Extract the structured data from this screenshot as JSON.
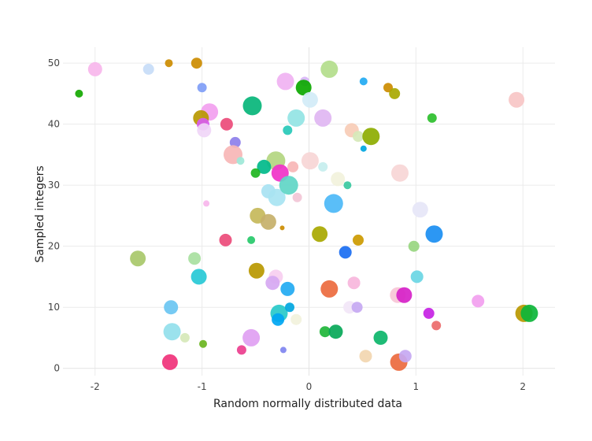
{
  "chart_data": {
    "type": "scatter",
    "title": "",
    "xlabel": "Random normally distributed data",
    "ylabel": "Sampled integers",
    "xlim": [
      -2.3,
      2.3
    ],
    "ylim": [
      -1.2,
      52.6
    ],
    "x_ticks": [
      -2,
      -1,
      0,
      1,
      2
    ],
    "x_tick_labels": [
      "-2",
      "-1",
      "0",
      "1",
      "2"
    ],
    "y_ticks": [
      0,
      10,
      20,
      30,
      40,
      50
    ],
    "y_tick_labels": [
      "0",
      "10",
      "20",
      "30",
      "40",
      "50"
    ],
    "grid": true,
    "legend": "none",
    "marker": "bubble; size and color vary per point",
    "points": [
      {
        "x": -2.0,
        "y": 49,
        "size": 9,
        "color": "#f7b6ec"
      },
      {
        "x": -1.5,
        "y": 49,
        "size": 7,
        "color": "#c7dcf7"
      },
      {
        "x": -1.31,
        "y": 50,
        "size": 5,
        "color": "#cc8c00"
      },
      {
        "x": -1.05,
        "y": 50,
        "size": 7,
        "color": "#cc8c00"
      },
      {
        "x": -1.0,
        "y": 46,
        "size": 6,
        "color": "#7f9df6"
      },
      {
        "x": -2.15,
        "y": 45,
        "size": 5,
        "color": "#13a800"
      },
      {
        "x": -0.93,
        "y": 42,
        "size": 11,
        "color": "#f2a0ef"
      },
      {
        "x": -1.01,
        "y": 41,
        "size": 10,
        "color": "#b89800"
      },
      {
        "x": -0.99,
        "y": 40,
        "size": 8,
        "color": "#d85cf0"
      },
      {
        "x": -0.98,
        "y": 39,
        "size": 9,
        "color": "#f0d6f7"
      },
      {
        "x": -0.77,
        "y": 40,
        "size": 8,
        "color": "#ec4b7a"
      },
      {
        "x": -0.69,
        "y": 37,
        "size": 7,
        "color": "#8d7fea"
      },
      {
        "x": -0.71,
        "y": 35,
        "size": 12,
        "color": "#f7b6b6"
      },
      {
        "x": -0.64,
        "y": 34,
        "size": 5,
        "color": "#9ee8d8"
      },
      {
        "x": -0.53,
        "y": 43,
        "size": 12,
        "color": "#07b57a"
      },
      {
        "x": -0.22,
        "y": 47,
        "size": 11,
        "color": "#f0b2f2"
      },
      {
        "x": -0.04,
        "y": 47,
        "size": 6,
        "color": "#d8b6f7"
      },
      {
        "x": -0.05,
        "y": 46,
        "size": 10,
        "color": "#0ca800"
      },
      {
        "x": 0.01,
        "y": 44,
        "size": 10,
        "color": "#d2ecf7"
      },
      {
        "x": 0.19,
        "y": 49,
        "size": 11,
        "color": "#b3dd8b"
      },
      {
        "x": 0.51,
        "y": 47,
        "size": 5,
        "color": "#22aaf2"
      },
      {
        "x": 0.74,
        "y": 46,
        "size": 6,
        "color": "#cc8c00"
      },
      {
        "x": 0.8,
        "y": 45,
        "size": 7,
        "color": "#a8a800"
      },
      {
        "x": 1.94,
        "y": 44,
        "size": 10,
        "color": "#f7c6c6"
      },
      {
        "x": -0.12,
        "y": 41,
        "size": 11,
        "color": "#93e4e4"
      },
      {
        "x": -0.2,
        "y": 39,
        "size": 6,
        "color": "#27c9b8"
      },
      {
        "x": 0.13,
        "y": 41,
        "size": 11,
        "color": "#e0b6f2"
      },
      {
        "x": 0.4,
        "y": 39,
        "size": 9,
        "color": "#f7ccb6"
      },
      {
        "x": 0.46,
        "y": 38,
        "size": 7,
        "color": "#d6e8b8"
      },
      {
        "x": 0.58,
        "y": 38,
        "size": 11,
        "color": "#8dac00"
      },
      {
        "x": 1.15,
        "y": 41,
        "size": 6,
        "color": "#2dbf2d"
      },
      {
        "x": 0.51,
        "y": 36,
        "size": 4,
        "color": "#00a6e0"
      },
      {
        "x": -0.31,
        "y": 34,
        "size": 12,
        "color": "#b3d680"
      },
      {
        "x": -0.42,
        "y": 33,
        "size": 9,
        "color": "#00ba8a"
      },
      {
        "x": -0.5,
        "y": 32,
        "size": 6,
        "color": "#1fb51f"
      },
      {
        "x": -0.27,
        "y": 32,
        "size": 11,
        "color": "#f032c8"
      },
      {
        "x": -0.15,
        "y": 33,
        "size": 7,
        "color": "#f7b6b6"
      },
      {
        "x": 0.01,
        "y": 34,
        "size": 11,
        "color": "#f7d6d6"
      },
      {
        "x": 0.13,
        "y": 33,
        "size": 6,
        "color": "#c6eeee"
      },
      {
        "x": 0.27,
        "y": 31,
        "size": 9,
        "color": "#f2f2dc"
      },
      {
        "x": 0.36,
        "y": 30,
        "size": 5,
        "color": "#39c9a0"
      },
      {
        "x": 0.85,
        "y": 32,
        "size": 11,
        "color": "#f7d6d6"
      },
      {
        "x": -0.38,
        "y": 29,
        "size": 9,
        "color": "#a8e2f2"
      },
      {
        "x": -0.3,
        "y": 28,
        "size": 11,
        "color": "#a8e4f2"
      },
      {
        "x": -0.19,
        "y": 30,
        "size": 12,
        "color": "#5fd6c6"
      },
      {
        "x": -0.11,
        "y": 28,
        "size": 6,
        "color": "#f2c6d6"
      },
      {
        "x": 0.23,
        "y": 27,
        "size": 12,
        "color": "#4cb8f7"
      },
      {
        "x": 1.04,
        "y": 26,
        "size": 10,
        "color": "#e6e6f7"
      },
      {
        "x": -0.96,
        "y": 27,
        "size": 4,
        "color": "#f7b6ec"
      },
      {
        "x": -0.48,
        "y": 25,
        "size": 10,
        "color": "#c6b85a"
      },
      {
        "x": -0.38,
        "y": 24,
        "size": 10,
        "color": "#c6b06a"
      },
      {
        "x": -0.25,
        "y": 23,
        "size": 3,
        "color": "#cc8c00"
      },
      {
        "x": 0.1,
        "y": 22,
        "size": 10,
        "color": "#a8a800"
      },
      {
        "x": 0.46,
        "y": 21,
        "size": 7,
        "color": "#cc9a00"
      },
      {
        "x": 1.17,
        "y": 22,
        "size": 11,
        "color": "#1a8ef2"
      },
      {
        "x": -0.78,
        "y": 21,
        "size": 8,
        "color": "#ec4b7a"
      },
      {
        "x": -0.54,
        "y": 21,
        "size": 5,
        "color": "#27c96a"
      },
      {
        "x": 0.34,
        "y": 19,
        "size": 8,
        "color": "#1a6ef2"
      },
      {
        "x": 0.98,
        "y": 20,
        "size": 7,
        "color": "#98d680"
      },
      {
        "x": -1.6,
        "y": 18,
        "size": 10,
        "color": "#a8c86a"
      },
      {
        "x": -1.07,
        "y": 18,
        "size": 8,
        "color": "#a8e0a0"
      },
      {
        "x": -1.03,
        "y": 15,
        "size": 10,
        "color": "#27c9d6"
      },
      {
        "x": -0.49,
        "y": 16,
        "size": 10,
        "color": "#b89800"
      },
      {
        "x": -0.31,
        "y": 15,
        "size": 9,
        "color": "#f7cef0"
      },
      {
        "x": -0.34,
        "y": 14,
        "size": 9,
        "color": "#d6a8f2"
      },
      {
        "x": -0.2,
        "y": 13,
        "size": 9,
        "color": "#22aaf2"
      },
      {
        "x": 0.19,
        "y": 13,
        "size": 11,
        "color": "#ec6a3e"
      },
      {
        "x": 0.42,
        "y": 14,
        "size": 8,
        "color": "#f7b6dc"
      },
      {
        "x": 0.83,
        "y": 12,
        "size": 10,
        "color": "#f7c6d6"
      },
      {
        "x": 0.89,
        "y": 12,
        "size": 10,
        "color": "#d622c8"
      },
      {
        "x": 1.01,
        "y": 15,
        "size": 8,
        "color": "#6ad6e4"
      },
      {
        "x": 1.58,
        "y": 11,
        "size": 8,
        "color": "#f2a0ef"
      },
      {
        "x": -1.29,
        "y": 10,
        "size": 9,
        "color": "#6ac6f2"
      },
      {
        "x": -0.28,
        "y": 9,
        "size": 11,
        "color": "#27c9c9"
      },
      {
        "x": -0.29,
        "y": 8,
        "size": 8,
        "color": "#00a6f2"
      },
      {
        "x": -0.18,
        "y": 10,
        "size": 6,
        "color": "#00a6e0"
      },
      {
        "x": -0.12,
        "y": 8,
        "size": 7,
        "color": "#f2f2dc"
      },
      {
        "x": 0.38,
        "y": 10,
        "size": 8,
        "color": "#f2e6f7"
      },
      {
        "x": 0.45,
        "y": 10,
        "size": 7,
        "color": "#c6a8f2"
      },
      {
        "x": 1.12,
        "y": 9,
        "size": 7,
        "color": "#c622e4"
      },
      {
        "x": 1.19,
        "y": 7,
        "size": 6,
        "color": "#ec6a6a"
      },
      {
        "x": 2.01,
        "y": 9,
        "size": 11,
        "color": "#b89800"
      },
      {
        "x": 2.06,
        "y": 9,
        "size": 11,
        "color": "#0cb53a"
      },
      {
        "x": -1.28,
        "y": 6,
        "size": 11,
        "color": "#93e0ec"
      },
      {
        "x": -1.16,
        "y": 5,
        "size": 6,
        "color": "#d6e8b8"
      },
      {
        "x": -0.99,
        "y": 4,
        "size": 5,
        "color": "#6ab51f"
      },
      {
        "x": -0.63,
        "y": 3,
        "size": 6,
        "color": "#ec3e8e"
      },
      {
        "x": -0.54,
        "y": 5,
        "size": 11,
        "color": "#e0a0f2"
      },
      {
        "x": -0.24,
        "y": 3,
        "size": 4,
        "color": "#7f84f0"
      },
      {
        "x": 0.15,
        "y": 6,
        "size": 7,
        "color": "#1fb53a"
      },
      {
        "x": 0.25,
        "y": 6,
        "size": 9,
        "color": "#07a858"
      },
      {
        "x": 0.53,
        "y": 2,
        "size": 8,
        "color": "#f2d6b0"
      },
      {
        "x": 0.67,
        "y": 5,
        "size": 9,
        "color": "#0cb56a"
      },
      {
        "x": 0.84,
        "y": 1,
        "size": 11,
        "color": "#ec6a3e"
      },
      {
        "x": 0.9,
        "y": 2,
        "size": 8,
        "color": "#c6a8f2"
      },
      {
        "x": -1.3,
        "y": 1,
        "size": 10,
        "color": "#f0327a"
      }
    ]
  }
}
